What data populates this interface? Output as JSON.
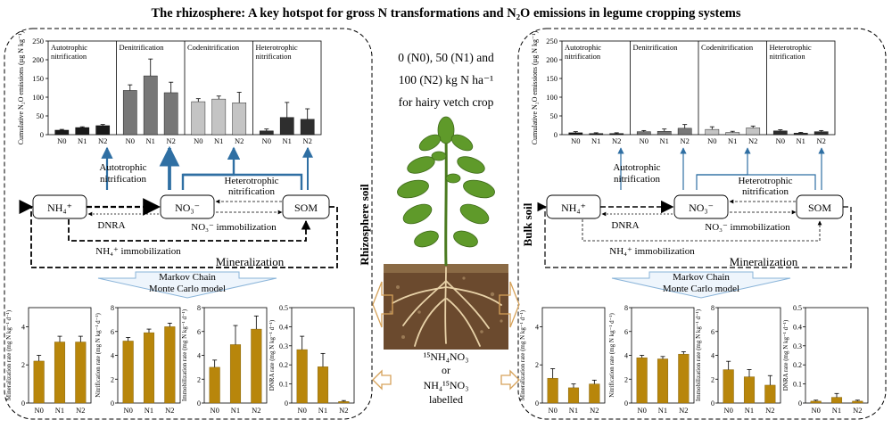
{
  "title": "The rhizosphere: A key hotspot for gross N transformations and N₂O emissions in legume cropping systems",
  "treatment": {
    "line1": "0 (N0), 50 (N1) and",
    "line2": "100 (N2) kg N ha⁻¹",
    "line3": "for hairy vetch crop"
  },
  "label": {
    "line1": "¹⁵NH₄NO₃",
    "line2": "or",
    "line3": "NH₄¹⁵NO₃",
    "line4": "labelled"
  },
  "panels": {
    "rhizo": {
      "side_label": "Rhizosphere soil"
    },
    "bulk": {
      "side_label": "Bulk soil"
    }
  },
  "network": {
    "nh4": "NH₄⁺",
    "no3": "NO₃⁻",
    "som": "SOM",
    "autotrophic_nitrification": [
      "Autotrophic",
      "nitrification"
    ],
    "heterotrophic_nitrification": [
      "Heterotrophic",
      "nitrification"
    ],
    "dnra": "DNRA",
    "no3_immobilization": "NO₃⁻ immobilization",
    "nh4_immobilization": "NH₄⁺ immobilization",
    "mineralization": "Mineralization",
    "model": [
      "Markov Chain",
      "Monte Carlo model"
    ]
  },
  "colors": {
    "autotrophic_bar": "#1a1a1a",
    "denitrification_bar": "#777777",
    "codenitrification_bar": "#c4c4c4",
    "heterotrophic_bar": "#2e2e2e",
    "rate_bar": "#b8860b",
    "blue_arrow": "#2f6fa3",
    "model_arrow": "#8ab4d9",
    "soil_arrow": "#d6a25a"
  },
  "chart_data": [
    {
      "id": "rhizo_n2o",
      "type": "bar",
      "ylabel": "Cumulative N₂O emissions (µg N kg⁻¹)",
      "ylim": [
        0,
        250
      ],
      "yticks": [
        0,
        50,
        100,
        150,
        200,
        250
      ],
      "categories": [
        "N0",
        "N1",
        "N2"
      ],
      "groups": [
        {
          "name": "Autotrophic nitrification",
          "color_key": "autotrophic_bar",
          "values": [
            12,
            19,
            24
          ],
          "errors": [
            2,
            2,
            3
          ]
        },
        {
          "name": "Denitrification",
          "color_key": "denitrification_bar",
          "values": [
            118,
            157,
            112
          ],
          "errors": [
            15,
            45,
            28
          ]
        },
        {
          "name": "Codenitrification",
          "color_key": "codenitrification_bar",
          "values": [
            88,
            95,
            85
          ],
          "errors": [
            8,
            8,
            28
          ]
        },
        {
          "name": "Heterotrophic nitrification",
          "color_key": "heterotrophic_bar",
          "values": [
            10,
            46,
            41
          ],
          "errors": [
            5,
            40,
            28
          ]
        }
      ]
    },
    {
      "id": "bulk_n2o",
      "type": "bar",
      "ylabel": "Cumulative N₂O emissions (µg N kg⁻¹)",
      "ylim": [
        0,
        250
      ],
      "yticks": [
        0,
        50,
        100,
        150,
        200,
        250
      ],
      "categories": [
        "N0",
        "N1",
        "N2"
      ],
      "groups": [
        {
          "name": "Autotrophic nitrification",
          "color_key": "autotrophic_bar",
          "values": [
            5,
            3,
            3
          ],
          "errors": [
            3,
            2,
            2
          ]
        },
        {
          "name": "Denitrification",
          "color_key": "denitrification_bar",
          "values": [
            8,
            9,
            17
          ],
          "errors": [
            3,
            6,
            10
          ]
        },
        {
          "name": "Codenitrification",
          "color_key": "codenitrification_bar",
          "values": [
            14,
            6,
            18
          ],
          "errors": [
            7,
            3,
            5
          ]
        },
        {
          "name": "Heterotrophic nitrification",
          "color_key": "heterotrophic_bar",
          "values": [
            10,
            4,
            8
          ],
          "errors": [
            3,
            2,
            3
          ]
        }
      ]
    },
    {
      "id": "rhizo_min",
      "type": "bar",
      "ylabel": "Mineralization rate (mg N kg⁻¹ d⁻¹)",
      "categories": [
        "N0",
        "N1",
        "N2"
      ],
      "values": [
        2.2,
        3.2,
        3.2
      ],
      "errors": [
        0.3,
        0.3,
        0.3
      ],
      "ylim": [
        0,
        5
      ],
      "yticks": [
        0,
        2,
        4
      ]
    },
    {
      "id": "rhizo_nit",
      "type": "bar",
      "ylabel": "Nitrification rate (mg N kg⁻¹ d⁻¹)",
      "categories": [
        "N0",
        "N1",
        "N2"
      ],
      "values": [
        5.2,
        5.9,
        6.4
      ],
      "errors": [
        0.3,
        0.3,
        0.3
      ],
      "ylim": [
        0,
        8
      ],
      "yticks": [
        0,
        2,
        4,
        6,
        8
      ]
    },
    {
      "id": "rhizo_imm",
      "type": "bar",
      "ylabel": "Immobilization rate (mg N kg⁻¹ d⁻¹)",
      "categories": [
        "N0",
        "N1",
        "N2"
      ],
      "values": [
        3.0,
        4.9,
        6.2
      ],
      "errors": [
        0.6,
        1.6,
        1.1
      ],
      "ylim": [
        0,
        8
      ],
      "yticks": [
        0,
        2,
        4,
        6,
        8
      ]
    },
    {
      "id": "rhizo_dnra",
      "type": "bar",
      "ylabel": "DNRA rate (mg N kg⁻¹ d⁻¹)",
      "categories": [
        "N0",
        "N1",
        "N2"
      ],
      "values": [
        0.28,
        0.19,
        0.008
      ],
      "errors": [
        0.07,
        0.07,
        0.005
      ],
      "ylim": [
        0,
        0.5
      ],
      "yticks": [
        0.0,
        0.1,
        0.2,
        0.3,
        0.4,
        0.5
      ]
    },
    {
      "id": "bulk_min",
      "type": "bar",
      "ylabel": "Mineralization rate (mg N kg⁻¹ d⁻¹)",
      "categories": [
        "N0",
        "N1",
        "N2"
      ],
      "values": [
        1.3,
        0.8,
        1.0
      ],
      "errors": [
        0.5,
        0.2,
        0.2
      ],
      "ylim": [
        0,
        5
      ],
      "yticks": [
        0,
        2,
        4
      ]
    },
    {
      "id": "bulk_nit",
      "type": "bar",
      "ylabel": "Nitrification rate (mg N kg⁻¹ d⁻¹)",
      "categories": [
        "N0",
        "N1",
        "N2"
      ],
      "values": [
        3.8,
        3.7,
        4.1
      ],
      "errors": [
        0.2,
        0.2,
        0.2
      ],
      "ylim": [
        0,
        8
      ],
      "yticks": [
        0,
        2,
        4,
        6,
        8
      ]
    },
    {
      "id": "bulk_imm",
      "type": "bar",
      "ylabel": "Immobilization rate (mg N kg⁻¹ d⁻¹)",
      "categories": [
        "N0",
        "N1",
        "N2"
      ],
      "values": [
        2.8,
        2.2,
        1.5
      ],
      "errors": [
        0.7,
        0.6,
        0.8
      ],
      "ylim": [
        0,
        8
      ],
      "yticks": [
        0,
        2,
        4,
        6,
        8
      ]
    },
    {
      "id": "bulk_dnra",
      "type": "bar",
      "ylabel": "DNRA rate (mg N kg⁻¹ d⁻¹)",
      "categories": [
        "N0",
        "N1",
        "N2"
      ],
      "values": [
        0.01,
        0.03,
        0.01
      ],
      "errors": [
        0.005,
        0.02,
        0.005
      ],
      "ylim": [
        0,
        0.5
      ],
      "yticks": [
        0.0,
        0.1,
        0.2,
        0.3,
        0.4,
        0.5
      ]
    }
  ]
}
